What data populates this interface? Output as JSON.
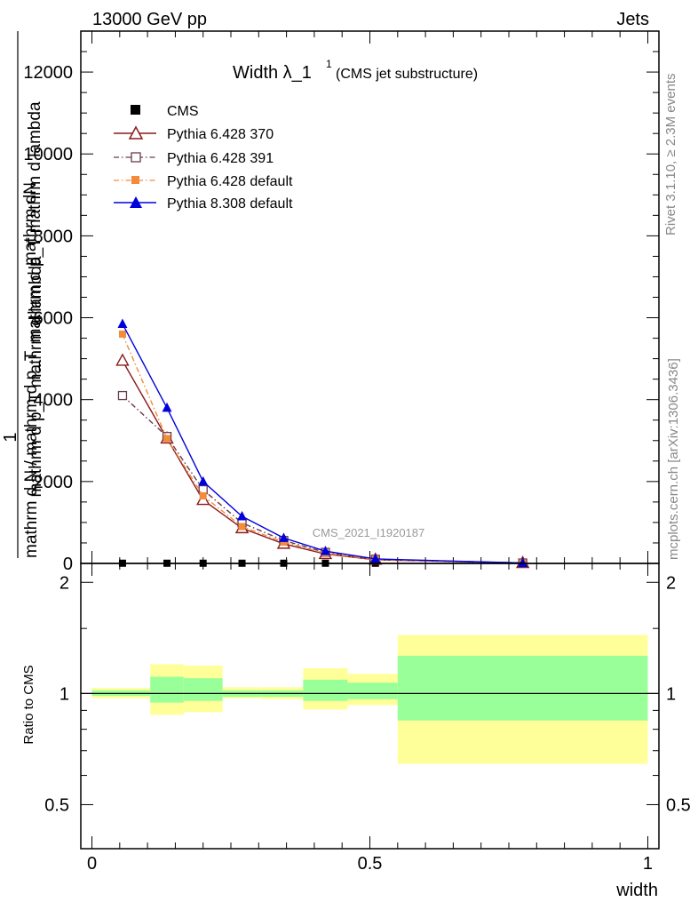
{
  "header": {
    "energy_label": "13000 GeV pp",
    "process_label": "Jets"
  },
  "side_labels": {
    "rivet": "Rivet 3.1.10, ≥ 2.3M events",
    "mcplots": "mcplots.cern.ch [arXiv:1306.3436]"
  },
  "watermark": "CMS_2021_I1920187",
  "colors": {
    "cms": "#000000",
    "py370": "#8b1a1a",
    "py391": "#6b3a4a",
    "pydefault": "#f28c3a",
    "py8": "#0000dd",
    "band_inner": "#99ff99",
    "band_outer": "#ffff99"
  },
  "chart_data": [
    {
      "type": "line",
      "title": "Width λ_1",
      "title_sup": "1",
      "subtitle": "(CMS jet substructure)",
      "ylabel_top": "1",
      "ylabel_num": "mathrm dN",
      "ylabel_den": "mathrm d p_T mathrm d lambda",
      "ylabel_num2": "mathrm d N / mathrm d p_T",
      "ylabel_den2": "mathrm d p_T mathrm d lambda",
      "ylim": [
        0,
        13000
      ],
      "yticks": [
        0,
        2000,
        4000,
        6000,
        8000,
        10000,
        12000
      ],
      "ytick_labels": [
        "0",
        "2000",
        "4000",
        "6000",
        "8000",
        "10000",
        "12000"
      ],
      "xlim": [
        -0.02,
        1.02
      ],
      "legend_position": "top-left",
      "series": [
        {
          "name": "CMS",
          "marker": "filled-square",
          "style": "none",
          "x": [
            0.055,
            0.135,
            0.2,
            0.27,
            0.345,
            0.42,
            0.51,
            0.775
          ],
          "values": [
            5,
            5,
            5,
            5,
            5,
            5,
            5,
            5
          ]
        },
        {
          "name": "Pythia 6.428 370",
          "marker": "open-triangle",
          "style": "solid",
          "x": [
            0.055,
            0.135,
            0.2,
            0.27,
            0.345,
            0.42,
            0.51,
            0.775
          ],
          "values": [
            4950,
            3050,
            1550,
            860,
            480,
            230,
            90,
            10
          ]
        },
        {
          "name": "Pythia 6.428 391",
          "marker": "open-square",
          "style": "dashdot",
          "x": [
            0.055,
            0.135,
            0.2,
            0.27,
            0.345,
            0.42,
            0.51,
            0.775
          ],
          "values": [
            4100,
            3100,
            1800,
            990,
            560,
            270,
            100,
            10
          ]
        },
        {
          "name": "Pythia 6.428 default",
          "marker": "filled-square",
          "style": "dashdot",
          "x": [
            0.055,
            0.135,
            0.2,
            0.27,
            0.345,
            0.42,
            0.51,
            0.775
          ],
          "values": [
            5600,
            3050,
            1650,
            900,
            520,
            250,
            95,
            10
          ]
        },
        {
          "name": "Pythia 8.308 default",
          "marker": "filled-triangle",
          "style": "solid",
          "x": [
            0.055,
            0.135,
            0.2,
            0.27,
            0.345,
            0.42,
            0.51,
            0.775
          ],
          "values": [
            5850,
            3800,
            2000,
            1150,
            620,
            300,
            110,
            10
          ]
        }
      ]
    },
    {
      "type": "area",
      "ylabel": "Ratio to CMS",
      "xlabel": "width",
      "ylim": [
        0.38,
        2.25
      ],
      "yticks": [
        0.5,
        1,
        2
      ],
      "ytick_labels": [
        "0.5",
        "1",
        "2"
      ],
      "xlim": [
        -0.02,
        1.02
      ],
      "xticks": [
        0,
        0.5,
        1
      ],
      "xtick_labels": [
        "0",
        "0.5",
        "1"
      ],
      "bins": [
        {
          "x0": 0.0,
          "x1": 0.105,
          "outer": [
            0.97,
            1.035
          ],
          "inner": [
            0.985,
            1.02
          ]
        },
        {
          "x0": 0.105,
          "x1": 0.165,
          "outer": [
            0.875,
            1.2
          ],
          "inner": [
            0.945,
            1.11
          ]
        },
        {
          "x0": 0.165,
          "x1": 0.235,
          "outer": [
            0.89,
            1.19
          ],
          "inner": [
            0.955,
            1.1
          ]
        },
        {
          "x0": 0.235,
          "x1": 0.305,
          "outer": [
            0.97,
            1.04
          ],
          "inner": [
            0.98,
            1.02
          ]
        },
        {
          "x0": 0.305,
          "x1": 0.38,
          "outer": [
            0.965,
            1.04
          ],
          "inner": [
            0.98,
            1.02
          ]
        },
        {
          "x0": 0.38,
          "x1": 0.46,
          "outer": [
            0.905,
            1.17
          ],
          "inner": [
            0.955,
            1.09
          ]
        },
        {
          "x0": 0.46,
          "x1": 0.55,
          "outer": [
            0.93,
            1.13
          ],
          "inner": [
            0.965,
            1.07
          ]
        },
        {
          "x0": 0.55,
          "x1": 1.0,
          "outer": [
            0.645,
            1.44
          ],
          "inner": [
            0.845,
            1.265
          ]
        }
      ]
    }
  ]
}
